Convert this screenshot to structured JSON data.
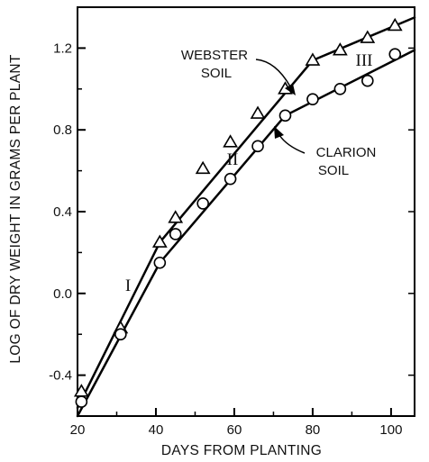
{
  "chart_data": {
    "type": "scatter",
    "xlabel": "DAYS FROM PLANTING",
    "ylabel": "LOG OF DRY WEIGHT IN GRAMS PER PLANT",
    "xlim": [
      20,
      106
    ],
    "ylim": [
      -0.6,
      1.4
    ],
    "x_ticks": [
      20,
      40,
      60,
      80,
      100
    ],
    "y_ticks": [
      -0.4,
      0.0,
      0.4,
      0.8,
      1.2
    ],
    "x_tick_labels": [
      "20",
      "40",
      "60",
      "80",
      "100"
    ],
    "y_tick_labels": [
      "-0.4",
      "0.0",
      "0.4",
      "0.8",
      "1.2"
    ],
    "grid": false,
    "series": [
      {
        "name": "WEBSTER SOIL",
        "marker": "triangle",
        "x": [
          21,
          31,
          41,
          45,
          52,
          59,
          66,
          73,
          80,
          87,
          94,
          101
        ],
        "y": [
          -0.48,
          -0.17,
          0.25,
          0.37,
          0.61,
          0.74,
          0.88,
          1.0,
          1.14,
          1.19,
          1.25,
          1.31
        ]
      },
      {
        "name": "CLARION SOIL",
        "marker": "circle",
        "x": [
          21,
          31,
          41,
          45,
          52,
          59,
          66,
          73,
          80,
          87,
          94,
          101
        ],
        "y": [
          -0.53,
          -0.2,
          0.15,
          0.29,
          0.44,
          0.56,
          0.72,
          0.87,
          0.95,
          1.0,
          1.04,
          1.17
        ]
      }
    ],
    "fit_lines": [
      {
        "series": "WEBSTER SOIL",
        "segments": [
          [
            [
              20,
              -0.56
            ],
            [
              41,
              0.25
            ]
          ],
          [
            [
              41,
              0.25
            ],
            [
              80,
              1.14
            ]
          ],
          [
            [
              80,
              1.14
            ],
            [
              106,
              1.35
            ]
          ]
        ]
      },
      {
        "series": "CLARION SOIL",
        "segments": [
          [
            [
              20,
              -0.6
            ],
            [
              41,
              0.15
            ]
          ],
          [
            [
              41,
              0.15
            ],
            [
              73,
              0.87
            ]
          ],
          [
            [
              73,
              0.87
            ],
            [
              106,
              1.19
            ]
          ]
        ]
      }
    ],
    "annotations": {
      "webster_line1": "WEBSTER",
      "webster_line2": "SOIL",
      "clarion_line1": "CLARION",
      "clarion_line2": "SOIL",
      "phase_1": "I",
      "phase_2": "II",
      "phase_3": "III"
    }
  }
}
